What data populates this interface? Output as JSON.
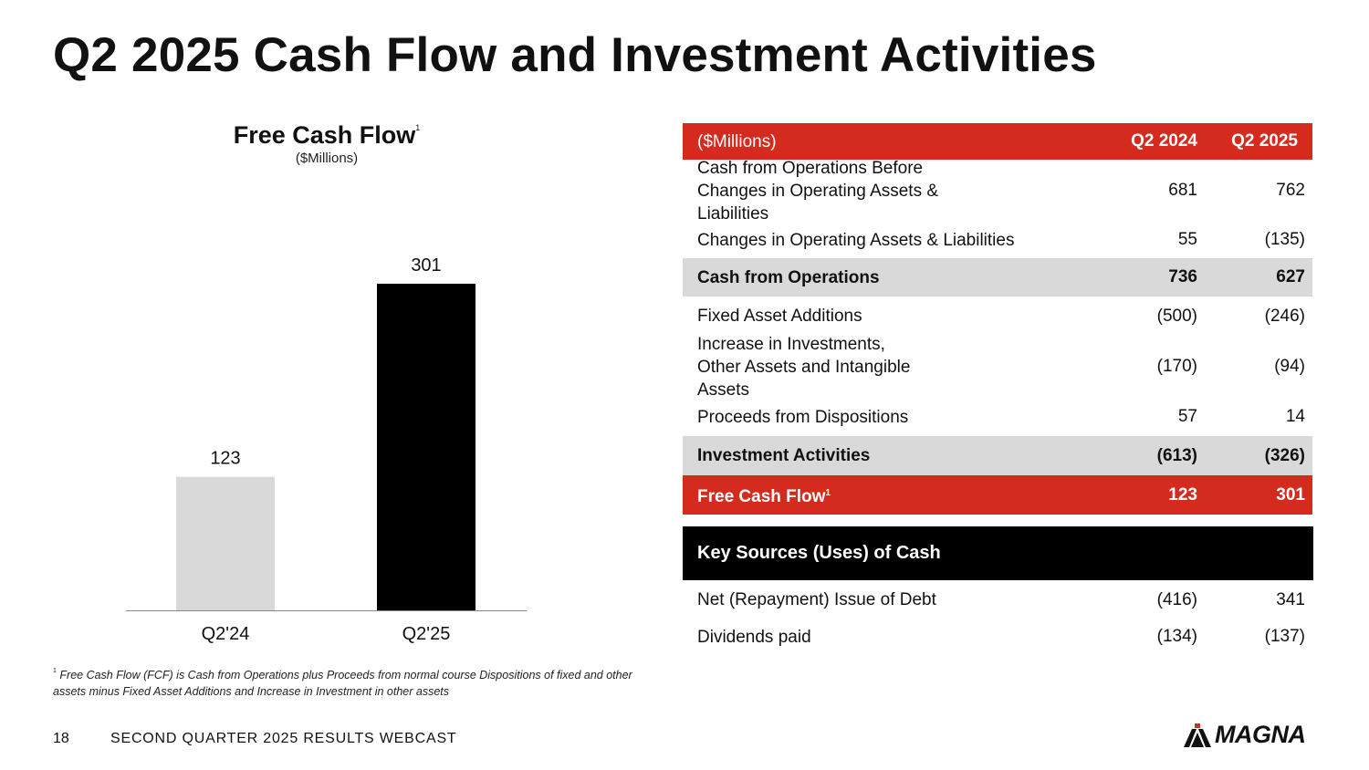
{
  "title": "Q2 2025 Cash Flow and Investment Activities",
  "chart": {
    "title": "Free Cash Flow",
    "title_sup": "1",
    "subtitle": "($Millions)"
  },
  "chart_data": {
    "type": "bar",
    "title": "Free Cash Flow",
    "subtitle": "($Millions)",
    "categories": [
      "Q2'24",
      "Q2'25"
    ],
    "values": [
      123,
      301
    ],
    "colors": [
      "#d9d9d9",
      "#000000"
    ],
    "ylim": [
      0,
      301
    ],
    "grid": false,
    "legend": "none"
  },
  "footnote": {
    "sup": "1",
    "text": "Free Cash Flow (FCF) is Cash from Operations plus Proceeds from normal course Dispositions of fixed and other assets minus Fixed Asset Additions and Increase in Investment in other assets"
  },
  "table": {
    "header": {
      "label": "($Millions)",
      "col1": "Q2 2024",
      "col2": "Q2 2025"
    },
    "rows": [
      {
        "label": "Cash from Operations Before Changes in Operating Assets & Liabilities",
        "col1": "681",
        "col2": "762"
      },
      {
        "label": "Changes in Operating Assets & Liabilities",
        "col1": "55",
        "col2": "(135)"
      },
      {
        "label": "Cash from Operations",
        "col1": "736",
        "col2": "627"
      },
      {
        "label": "Fixed Asset Additions",
        "col1": "(500)",
        "col2": "(246)"
      },
      {
        "label": "Increase in Investments, Other Assets and Intangible Assets",
        "col1": "(170)",
        "col2": "(94)"
      },
      {
        "label": "Proceeds from Dispositions",
        "col1": "57",
        "col2": "14"
      },
      {
        "label": "Investment Activities",
        "col1": "(613)",
        "col2": "(326)"
      },
      {
        "label": "Free Cash Flow",
        "label_sup": "1",
        "col1": "123",
        "col2": "301"
      }
    ]
  },
  "sources": {
    "header": "Key Sources (Uses) of Cash",
    "rows": [
      {
        "label": "Net (Repayment) Issue of Debt",
        "col1": "(416)",
        "col2": "341"
      },
      {
        "label": "Dividends paid",
        "col1": "(134)",
        "col2": "(137)"
      }
    ]
  },
  "footer": {
    "page_number": "18",
    "text": "SECOND QUARTER 2025 RESULTS WEBCAST",
    "logo": "MAGNA"
  },
  "colors": {
    "accent_red": "#d52b1e",
    "highlight_grey": "#d9d9d9",
    "black": "#000000"
  }
}
